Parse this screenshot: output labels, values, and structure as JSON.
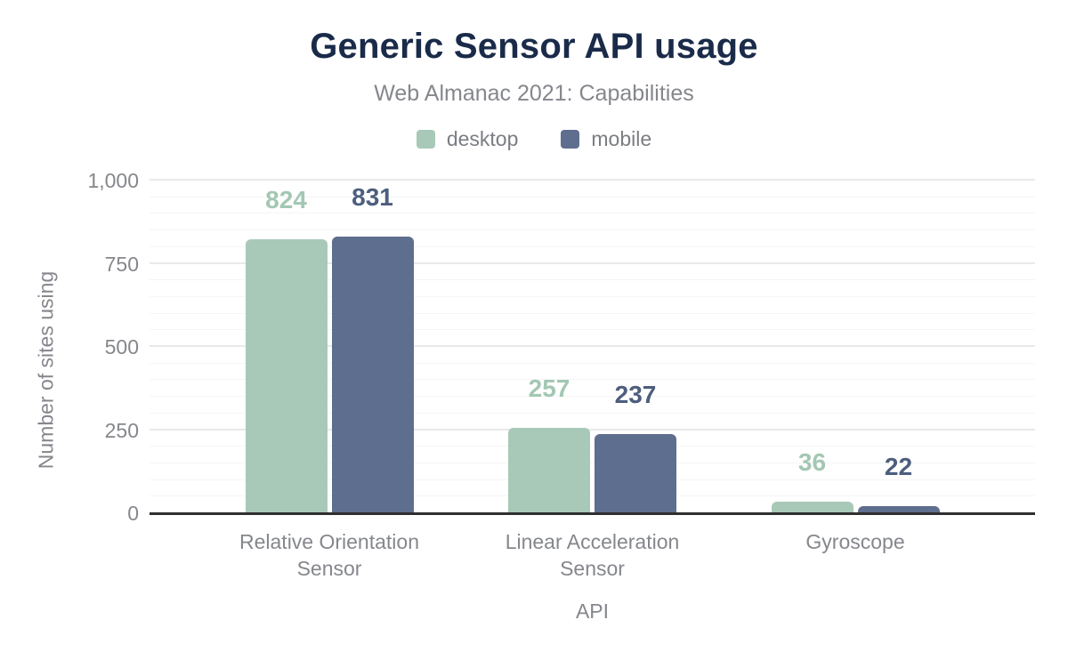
{
  "chart_data": {
    "type": "bar",
    "title": "Generic Sensor API usage",
    "subtitle": "Web Almanac 2021: Capabilities",
    "xlabel": "API",
    "ylabel": "Number of sites using",
    "categories": [
      "Relative Orientation Sensor",
      "Linear Acceleration Sensor",
      "Gyroscope"
    ],
    "series": [
      {
        "name": "desktop",
        "values": [
          824,
          257,
          36
        ],
        "color": "#a8c9b8",
        "label_color": "#a3c7b3"
      },
      {
        "name": "mobile",
        "values": [
          831,
          237,
          22
        ],
        "color": "#5e6e8e",
        "label_color": "#4d5e7e"
      }
    ],
    "ylim": [
      0,
      1000
    ],
    "yticks": [
      {
        "value": 0,
        "label": "0"
      },
      {
        "value": 250,
        "label": "250"
      },
      {
        "value": 500,
        "label": "500"
      },
      {
        "value": 750,
        "label": "750"
      },
      {
        "value": 1000,
        "label": "1,000"
      }
    ],
    "grid": {
      "minor_step": 50,
      "major_step": 250,
      "vertical": false
    },
    "legend_position": "top",
    "colors": {
      "title": "#1a2b4a",
      "subtitle": "#85878c",
      "axis_text": "#85878c",
      "legend_text": "#7b7d83",
      "axis_line": "#2f2f2f",
      "grid_minor": "#f5f5f5",
      "grid_major": "#e9e9e9",
      "background": "#ffffff"
    }
  }
}
